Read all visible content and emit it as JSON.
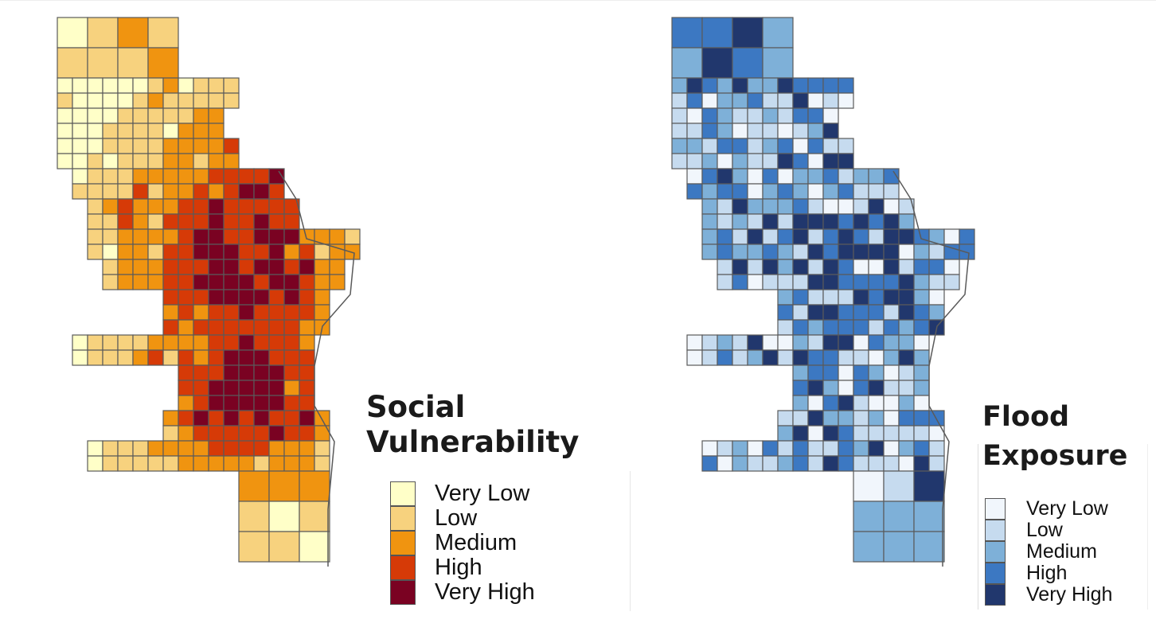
{
  "maps": [
    {
      "id": "social-vulnerability",
      "title_line1": "Social",
      "title_line2": "Vulnerability",
      "legend": [
        {
          "label": "Very Low",
          "color": "#ffffc8"
        },
        {
          "label": "Low",
          "color": "#f7d27e"
        },
        {
          "label": "Medium",
          "color": "#f09410"
        },
        {
          "label": "High",
          "color": "#d63a07"
        },
        {
          "label": "Very High",
          "color": "#7a0222"
        }
      ]
    },
    {
      "id": "flood-exposure",
      "title_line1": "Flood",
      "title_line2": "Exposure",
      "legend": [
        {
          "label": "Very Low",
          "color": "#f1f6fc"
        },
        {
          "label": "Low",
          "color": "#c6dbef"
        },
        {
          "label": "Medium",
          "color": "#7eb0d8"
        },
        {
          "label": "High",
          "color": "#3c78c2"
        },
        {
          "label": "Very High",
          "color": "#21376d"
        }
      ]
    }
  ]
}
